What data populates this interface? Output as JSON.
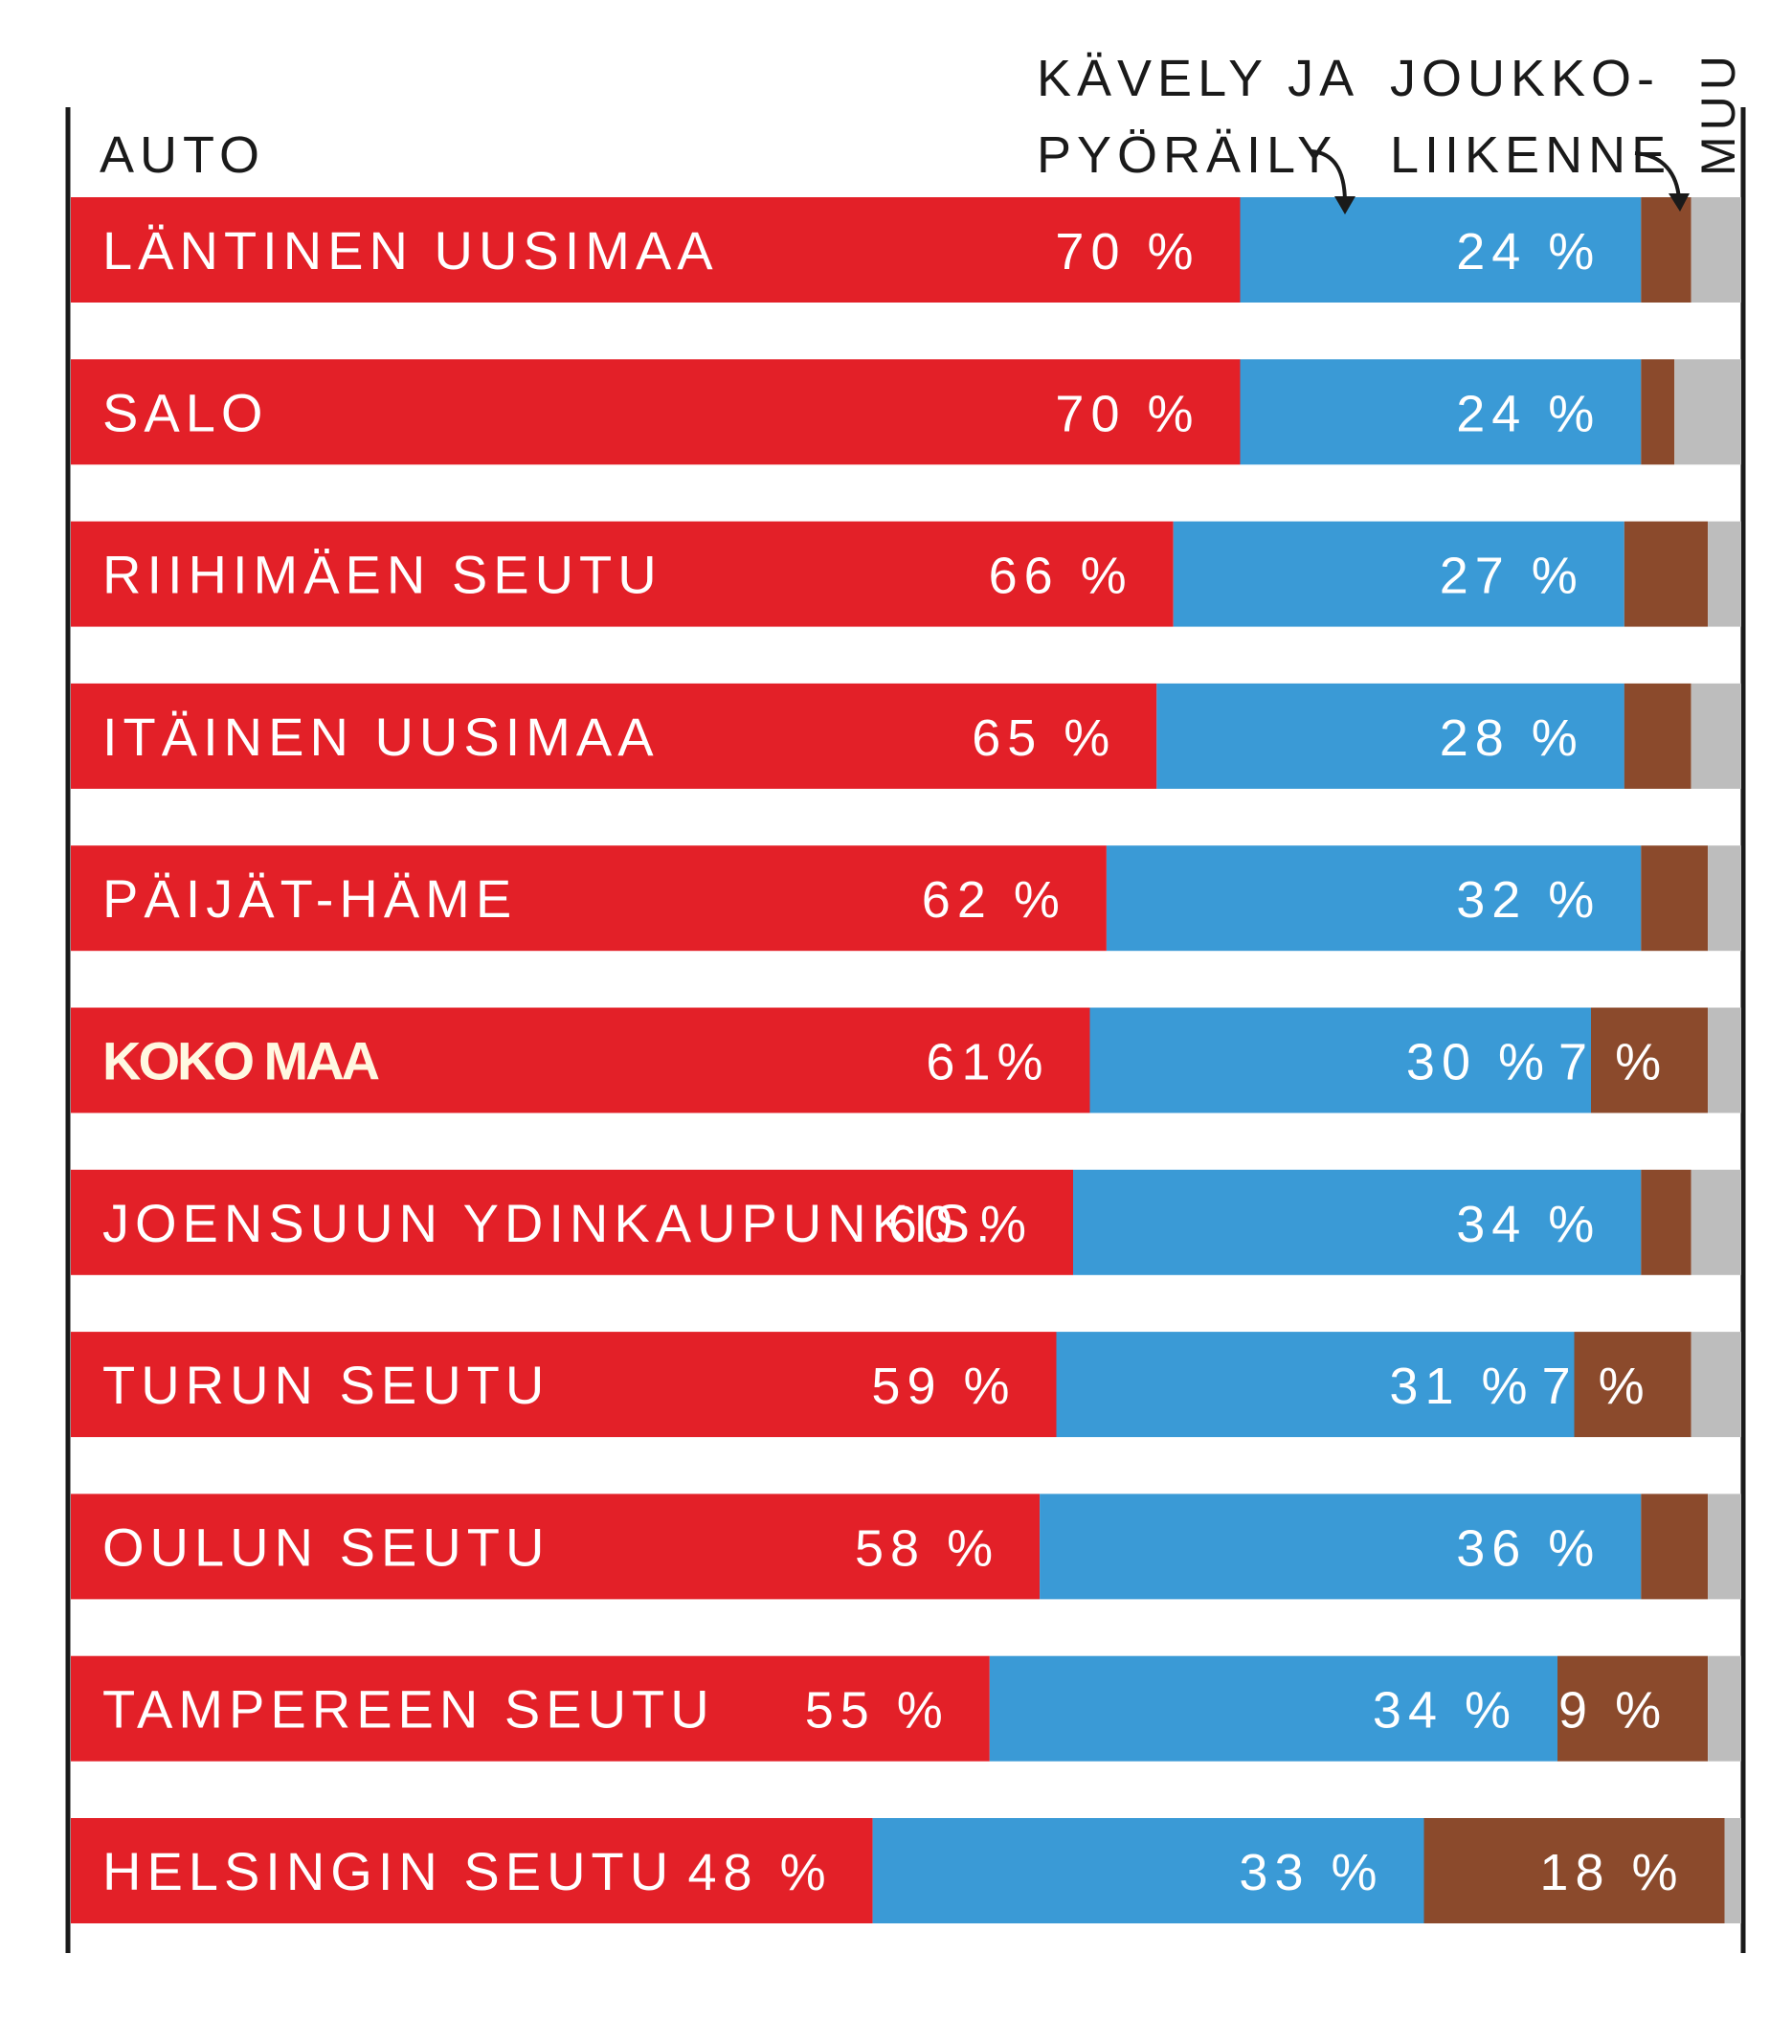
{
  "legend_labels": {
    "auto": "AUTO",
    "walk_line1": "KÄVELY JA",
    "walk_line2": "PYÖRÄILY",
    "transit_line1": "JOUKKO-",
    "transit_line2": "LIIKENNE",
    "other": "MUU"
  },
  "colors": {
    "auto": "#e32028",
    "walk_cycle": "#3a9ad6",
    "transit": "#8b4a2c",
    "other": "#bdbdbd",
    "axis": "#1a1a1a",
    "label_text": "#ffffff"
  },
  "chart_data": {
    "type": "bar",
    "orientation": "horizontal",
    "stacked": true,
    "normalized": true,
    "xlim": [
      0,
      100
    ],
    "grid": false,
    "legend": "top",
    "categories": [
      "LÄNTINEN UUSIMAA",
      "SALO",
      "RIIHIMÄEN SEUTU",
      "ITÄINEN UUSIMAA",
      "PÄIJÄT-HÄME",
      "KOKO MAA",
      "JOENSUUN YDINKAUPUNKIS.",
      "TURUN SEUTU",
      "OULUN SEUTU",
      "TAMPEREEN SEUTU",
      "HELSINGIN SEUTU"
    ],
    "highlight_category": "KOKO MAA",
    "series": [
      {
        "name": "AUTO",
        "values": [
          70,
          70,
          66,
          65,
          62,
          61,
          60,
          59,
          58,
          55,
          48
        ],
        "labels": [
          "70 %",
          "70 %",
          "66 %",
          "65 %",
          "62 %",
          "61%",
          "60 %",
          "59 %",
          "58 %",
          "55 %",
          "48 %"
        ]
      },
      {
        "name": "KÄVELY JA PYÖRÄILY",
        "values": [
          24,
          24,
          27,
          28,
          32,
          30,
          34,
          31,
          36,
          34,
          33
        ],
        "labels": [
          "24 %",
          "24 %",
          "27 %",
          "28 %",
          "32 %",
          "30 %",
          "34 %",
          "31 %",
          "36 %",
          "34 %",
          "33 %"
        ]
      },
      {
        "name": "JOUKKOLIIKENNE",
        "values": [
          3,
          2,
          5,
          4,
          4,
          7,
          3,
          7,
          4,
          9,
          18
        ],
        "labels": [
          "",
          "",
          "",
          "",
          "",
          "7 %",
          "",
          "7 %",
          "",
          "9 %",
          "18 %"
        ]
      },
      {
        "name": "MUU",
        "values": [
          3,
          4,
          2,
          3,
          2,
          2,
          3,
          3,
          2,
          2,
          1
        ],
        "labels": [
          "",
          "",
          "",
          "",
          "",
          "",
          "",
          "",
          "",
          "",
          ""
        ]
      }
    ]
  }
}
